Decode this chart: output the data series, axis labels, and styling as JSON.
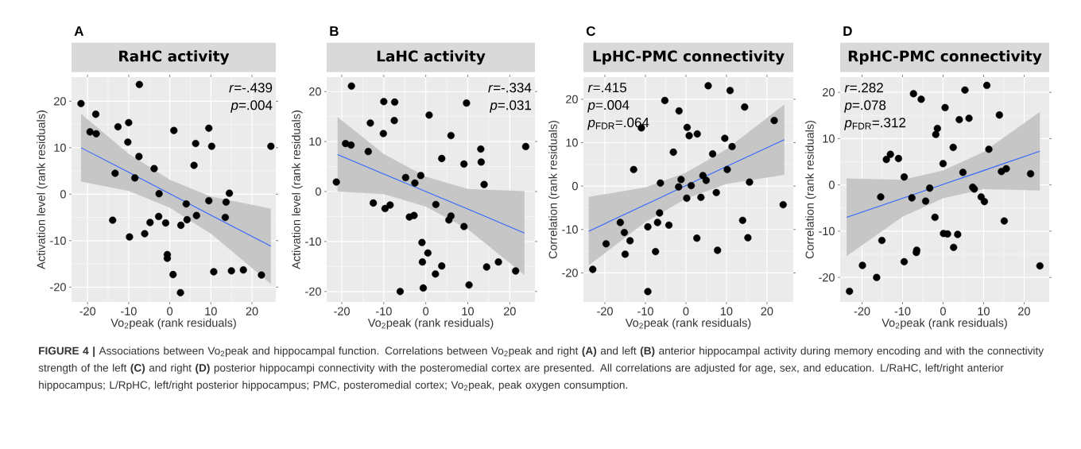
{
  "chart_data": [
    {
      "type": "scatter",
      "title": "RaHC activity",
      "xlabel": "Vo$_{2}$peak (rank residuals)",
      "ylabel": "Activation level (rank residuals)",
      "annotations": [
        "A",
        "*r*=-.439",
        "*p*=.004"
      ],
      "xlim": [
        -23.9,
        25.8
      ],
      "ylim": [
        -23.2,
        25.2
      ],
      "xticks": [
        -20,
        -10,
        0,
        10,
        20
      ],
      "yticks": [
        -20,
        -10,
        0,
        10,
        20
      ],
      "grid": true,
      "series": [
        {
          "type": "scatter",
          "color": "#000000",
          "marker": "circle",
          "x": [
            -21.6,
            -19.4,
            -17.9,
            -18.0,
            -13.3,
            -13.9,
            -12.6,
            -10.0,
            -10.2,
            -9.8,
            -7.4,
            -7.5,
            -8.5,
            -6.1,
            -4.8,
            -3.8,
            -2.6,
            -2.7,
            -1.0,
            -0.6,
            -0.6,
            0.8,
            1.0,
            2.6,
            2.7,
            4.0,
            4.2,
            5.9,
            6.3,
            6.5,
            9.5,
            9.5,
            10.2,
            10.7,
            13.7,
            13.5,
            14.5,
            15.0,
            17.9,
            22.3,
            24.6
          ],
          "values": [
            19.5,
            13.4,
            13.0,
            17.2,
            4.5,
            -5.6,
            14.5,
            15.4,
            11.2,
            -9.2,
            23.6,
            8.1,
            3.5,
            -8.5,
            -6.1,
            5.5,
            0.1,
            -4.8,
            -6.2,
            -13.0,
            -13.8,
            -17.3,
            13.7,
            -21.2,
            -6.7,
            -2.1,
            -5.5,
            6.2,
            10.9,
            -4.6,
            14.2,
            -1.4,
            10.3,
            -16.7,
            -1.7,
            -5.0,
            0.2,
            -16.5,
            -16.3,
            -17.4,
            10.3
          ]
        },
        {
          "type": "line",
          "color": "#3366ff",
          "x": [
            -21.6,
            -10,
            0,
            10,
            24.6
          ],
          "values": [
            10,
            4.7,
            0.1,
            -4.5,
            -11.2
          ],
          "lower": [
            2.7,
            0.7,
            -2.9,
            -8.5,
            -19.3
          ],
          "upper": [
            17.3,
            8.7,
            3.1,
            -0.5,
            -3.1
          ]
        }
      ]
    },
    {
      "type": "scatter",
      "title": "LaHC activity",
      "xlabel": "Vo$_{2}$peak (rank residuals)",
      "ylabel": "Activation level (rank residuals)",
      "annotations": [
        "B",
        "*r*=-.334",
        "*p*=.031"
      ],
      "xlim": [
        -23.6,
        26.0
      ],
      "ylim": [
        -22.1,
        22.9
      ],
      "xticks": [
        -20,
        -10,
        0,
        10,
        20
      ],
      "yticks": [
        -20,
        -10,
        0,
        10,
        20
      ],
      "grid": true,
      "series": [
        {
          "type": "scatter",
          "color": "#000000",
          "marker": "circle",
          "x": [
            -21.3,
            -19.1,
            -17.8,
            -17.7,
            -13.7,
            -13.2,
            -12.5,
            -10.1,
            -10.0,
            -9.7,
            -8.5,
            -7.4,
            -7.5,
            -6.1,
            -4.8,
            -3.9,
            -2.8,
            -2.6,
            -1.2,
            -0.9,
            -0.8,
            -0.6,
            0.5,
            0.8,
            2.3,
            2.4,
            3.8,
            3.8,
            5.5,
            6.0,
            6.0,
            9.1,
            9.1,
            9.7,
            10.3,
            13.1,
            13.2,
            13.9,
            14.5,
            17.3,
            21.4,
            23.8
          ],
          "values": [
            1.9,
            9.6,
            9.3,
            21.1,
            8.0,
            13.7,
            -2.3,
            11.6,
            18.0,
            -3.4,
            -2.7,
            17.9,
            14.2,
            -20.0,
            2.8,
            -5.1,
            -4.8,
            1.7,
            3.2,
            -10.2,
            -14.1,
            -19.3,
            -12.3,
            15.3,
            -16.5,
            -2.6,
            6.6,
            -14.9,
            -5.7,
            -4.9,
            11.2,
            5.5,
            -7.0,
            17.7,
            -18.7,
            8.5,
            5.9,
            1.4,
            -15.1,
            -14.1,
            -15.9,
            9.0
          ]
        },
        {
          "type": "line",
          "color": "#3366ff",
          "x": [
            -21,
            -10,
            0,
            10,
            23.5
          ],
          "values": [
            7.4,
            3.5,
            0,
            -3.5,
            -8.3
          ],
          "lower": [
            0,
            -0.5,
            -3,
            -7.5,
            -16.7
          ],
          "upper": [
            14.9,
            7.5,
            3,
            0.5,
            0.1
          ]
        }
      ]
    },
    {
      "type": "scatter",
      "title": "LpHC-PMC connectivity",
      "xlabel": "Vo$_{2}$peak (rank residuals)",
      "ylabel": "Correlation (rank residuals)",
      "annotations": [
        "C",
        "*r*=.415",
        "*p*=.004",
        "*p*$_{FDR}$=.064"
      ],
      "xlim": [
        -25.3,
        26.5
      ],
      "ylim": [
        -26.7,
        25.1
      ],
      "xticks": [
        -20,
        -10,
        0,
        10,
        20
      ],
      "yticks": [
        -20,
        -10,
        0,
        10,
        20
      ],
      "grid": true,
      "series": [
        {
          "type": "scatter",
          "color": "#000000",
          "marker": "circle",
          "x": [
            -23.0,
            -19.7,
            -16.2,
            -15.2,
            -15.0,
            -13.8,
            -12.9,
            -11.0,
            -9.4,
            -9.4,
            -7.5,
            -7.0,
            -6.5,
            -6.3,
            -5.2,
            -4.2,
            -3.1,
            -1.7,
            -1.8,
            -1.2,
            0.3,
            0.2,
            0.8,
            1.3,
            2.8,
            2.7,
            3.7,
            4.2,
            5.0,
            5.5,
            6.6,
            7.5,
            7.8,
            9.6,
            10.2,
            10.9,
            11.4,
            14.0,
            14.5,
            15.3,
            15.7,
            21.8,
            24.0
          ],
          "values": [
            -19.2,
            -13.3,
            -8.4,
            -10.7,
            -15.7,
            -12.6,
            3.8,
            13.4,
            -9.4,
            -24.3,
            -15.1,
            -8.4,
            -6.2,
            0.7,
            19.7,
            -9.0,
            7.8,
            17.3,
            -0.2,
            1.5,
            13.5,
            -2.8,
            11.6,
            0.1,
            12.0,
            -12.0,
            -2.6,
            2.4,
            1.3,
            23.1,
            7.4,
            -1.5,
            -14.8,
            11.0,
            3.8,
            22.0,
            9.1,
            -7.9,
            18.2,
            -11.9,
            0.9,
            15.1,
            -4.3
          ]
        },
        {
          "type": "line",
          "color": "#3366ff",
          "x": [
            -24,
            -10,
            0,
            10,
            24.3
          ],
          "values": [
            -10.4,
            -4.3,
            0.1,
            4.5,
            10.7
          ],
          "lower": [
            -18.3,
            -8.3,
            -2.9,
            0.5,
            2.6
          ],
          "upper": [
            -2.5,
            -0.3,
            3.1,
            8.5,
            18.8
          ]
        }
      ]
    },
    {
      "type": "scatter",
      "title": "RpHC-PMC connectivity",
      "xlabel": "Vo$_{2}$peak (rank residuals)",
      "ylabel": "Correlation (rank residuals)",
      "annotations": [
        "D",
        "*r*=.282",
        "*p*=.078",
        "*p*$_{FDR}$=.312",
        "**FIGURE 4 |** Associations between Vo$_{2}$peak and hippocampal function. Correlations between Vo$_{2}$peak and right **(A)** and left **(B)** anterior hippocampal activity during memory encoding and with the connectivity strength of the left **(C)** and right **(D)** posterior hippocampi connectivity with the posteromedial cortex are presented. All correlations are adjusted for age, sex, and education. L/RaHC, left/right anterior hippocampus; L/RpHC, left/right posterior hippocampus; PMC, posteromedial cortex; Vo$_{2}$peak, peak oxygen consumption."
      ],
      "xlim": [
        -25.4,
        26.2
      ],
      "ylim": [
        -25.3,
        23.3
      ],
      "xticks": [
        -20,
        -10,
        0,
        10,
        20
      ],
      "yticks": [
        -20,
        -10,
        0,
        10,
        20
      ],
      "grid": true,
      "series": [
        {
          "type": "scatter",
          "color": "#000000",
          "marker": "circle",
          "x": [
            -23.1,
            -19.9,
            -16.4,
            -15.4,
            -15.1,
            -14.0,
            -13.0,
            -11.0,
            -9.6,
            -9.6,
            -7.7,
            -7.3,
            -6.6,
            -6.5,
            -5.4,
            -4.3,
            -3.3,
            -2.0,
            -1.8,
            -1.4,
            0.0,
            0.1,
            0.5,
            1.1,
            2.5,
            2.6,
            3.6,
            4.0,
            4.9,
            5.4,
            6.4,
            7.3,
            7.7,
            9.4,
            10.2,
            10.8,
            11.3,
            13.9,
            14.4,
            15.1,
            15.6,
            21.6,
            23.9
          ],
          "values": [
            -23.0,
            -17.4,
            -20.0,
            -2.6,
            -12.0,
            5.5,
            6.6,
            5.7,
            1.7,
            -16.6,
            -2.8,
            19.7,
            -14.6,
            -14.1,
            18.5,
            -3.5,
            -0.7,
            -7.0,
            10.9,
            12.2,
            4.6,
            -10.5,
            16.7,
            -10.6,
            8.1,
            -13.5,
            -10.7,
            14.1,
            2.7,
            20.5,
            14.4,
            -0.5,
            -0.9,
            -2.6,
            -3.6,
            21.5,
            7.7,
            15.1,
            2.9,
            -7.8,
            3.5,
            2.4,
            -17.5
          ]
        },
        {
          "type": "line",
          "color": "#3366ff",
          "x": [
            -23.8,
            -10,
            0,
            10,
            23.9
          ],
          "values": [
            -7,
            -2.9,
            0.1,
            3.1,
            7.3
          ],
          "lower": [
            -15.4,
            -6.9,
            -2.9,
            -0.9,
            -1.2
          ],
          "upper": [
            1.4,
            1.1,
            3.1,
            7.1,
            15.8
          ]
        }
      ]
    }
  ]
}
